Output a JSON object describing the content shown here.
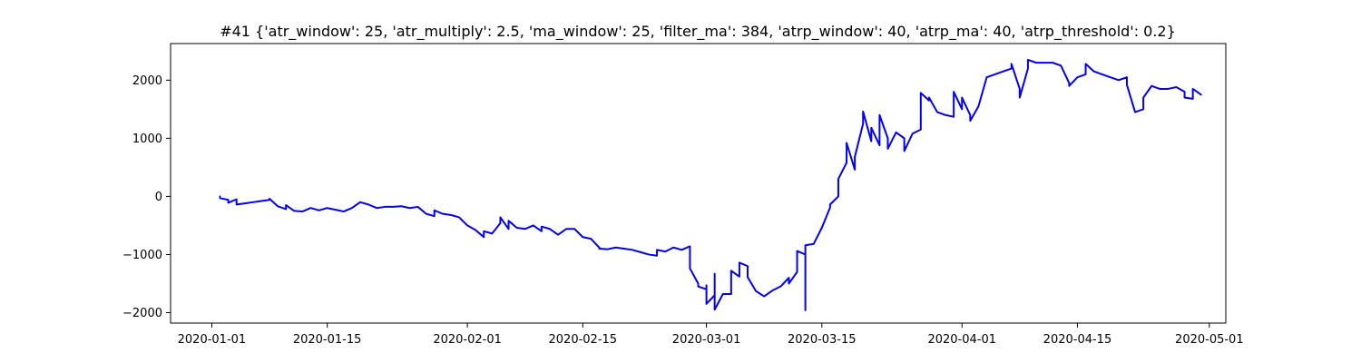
{
  "chart_data": {
    "type": "line",
    "title": "#41 {'atr_window': 25, 'atr_multiply': 2.5, 'ma_window': 25, 'filter_ma': 384, 'atrp_window': 40, 'atrp_ma': 40, 'atrp_threshold': 0.2}",
    "xlabel": "",
    "ylabel": "",
    "grid": false,
    "x_axis_kind": "date",
    "xlim": [
      "2019-12-27",
      "2020-05-03"
    ],
    "ylim": [
      -2180,
      2630
    ],
    "x_ticks": [
      "2020-01-01",
      "2020-01-15",
      "2020-02-01",
      "2020-02-15",
      "2020-03-01",
      "2020-03-15",
      "2020-04-01",
      "2020-04-15",
      "2020-05-01"
    ],
    "y_ticks": [
      -2000,
      -1000,
      0,
      1000,
      2000
    ],
    "series": [
      {
        "color": "#0000ff",
        "points": [
          [
            "2020-01-02",
            0
          ],
          [
            "2020-01-02",
            -30
          ],
          [
            "2020-01-03",
            -60
          ],
          [
            "2020-01-03",
            -110
          ],
          [
            "2020-01-04",
            -50
          ],
          [
            "2020-01-04",
            -140
          ],
          [
            "2020-01-05",
            -120
          ],
          [
            "2020-01-06",
            -100
          ],
          [
            "2020-01-07",
            -80
          ],
          [
            "2020-01-08",
            -60
          ],
          [
            "2020-01-08",
            -40
          ],
          [
            "2020-01-09",
            -170
          ],
          [
            "2020-01-10",
            -220
          ],
          [
            "2020-01-10",
            -150
          ],
          [
            "2020-01-11",
            -250
          ],
          [
            "2020-01-12",
            -260
          ],
          [
            "2020-01-13",
            -200
          ],
          [
            "2020-01-14",
            -240
          ],
          [
            "2020-01-15",
            -200
          ],
          [
            "2020-01-16",
            -230
          ],
          [
            "2020-01-17",
            -260
          ],
          [
            "2020-01-18",
            -200
          ],
          [
            "2020-01-19",
            -100
          ],
          [
            "2020-01-20",
            -140
          ],
          [
            "2020-01-21",
            -200
          ],
          [
            "2020-01-22",
            -180
          ],
          [
            "2020-01-23",
            -180
          ],
          [
            "2020-01-24",
            -170
          ],
          [
            "2020-01-25",
            -200
          ],
          [
            "2020-01-26",
            -180
          ],
          [
            "2020-01-27",
            -300
          ],
          [
            "2020-01-28",
            -340
          ],
          [
            "2020-01-28",
            -240
          ],
          [
            "2020-01-29",
            -300
          ],
          [
            "2020-01-30",
            -320
          ],
          [
            "2020-01-31",
            -360
          ],
          [
            "2020-02-01",
            -500
          ],
          [
            "2020-02-02",
            -580
          ],
          [
            "2020-02-03",
            -700
          ],
          [
            "2020-02-03",
            -600
          ],
          [
            "2020-02-04",
            -640
          ],
          [
            "2020-02-05",
            -460
          ],
          [
            "2020-02-05",
            -360
          ],
          [
            "2020-02-06",
            -560
          ],
          [
            "2020-02-06",
            -420
          ],
          [
            "2020-02-07",
            -540
          ],
          [
            "2020-02-08",
            -560
          ],
          [
            "2020-02-09",
            -500
          ],
          [
            "2020-02-10",
            -600
          ],
          [
            "2020-02-10",
            -520
          ],
          [
            "2020-02-11",
            -560
          ],
          [
            "2020-02-12",
            -660
          ],
          [
            "2020-02-13",
            -560
          ],
          [
            "2020-02-14",
            -560
          ],
          [
            "2020-02-15",
            -700
          ],
          [
            "2020-02-16",
            -730
          ],
          [
            "2020-02-17",
            -880
          ],
          [
            "2020-02-17",
            -900
          ],
          [
            "2020-02-18",
            -910
          ],
          [
            "2020-02-19",
            -880
          ],
          [
            "2020-02-20",
            -900
          ],
          [
            "2020-02-21",
            -920
          ],
          [
            "2020-02-22",
            -960
          ],
          [
            "2020-02-23",
            -1000
          ],
          [
            "2020-02-24",
            -1020
          ],
          [
            "2020-02-24",
            -920
          ],
          [
            "2020-02-25",
            -950
          ],
          [
            "2020-02-26",
            -880
          ],
          [
            "2020-02-27",
            -920
          ],
          [
            "2020-02-28",
            -860
          ],
          [
            "2020-02-28",
            -1130
          ],
          [
            "2020-02-28",
            -1240
          ],
          [
            "2020-02-29",
            -1500
          ],
          [
            "2020-02-29",
            -1550
          ],
          [
            "2020-03-01",
            -1600
          ],
          [
            "2020-03-01",
            -1740
          ],
          [
            "2020-03-01",
            -1530
          ],
          [
            "2020-03-01",
            -1850
          ],
          [
            "2020-03-02",
            -1700
          ],
          [
            "2020-03-02",
            -1740
          ],
          [
            "2020-03-02",
            -1330
          ],
          [
            "2020-03-02",
            -1580
          ],
          [
            "2020-03-02",
            -1680
          ],
          [
            "2020-03-02",
            -1650
          ],
          [
            "2020-03-02",
            -1780
          ],
          [
            "2020-03-02",
            -1650
          ],
          [
            "2020-03-02",
            -1950
          ],
          [
            "2020-03-03",
            -1680
          ],
          [
            "2020-03-04",
            -1680
          ],
          [
            "2020-03-04",
            -1280
          ],
          [
            "2020-03-05",
            -1380
          ],
          [
            "2020-03-05",
            -1170
          ],
          [
            "2020-03-05",
            -1140
          ],
          [
            "2020-03-06",
            -1200
          ],
          [
            "2020-03-06",
            -1250
          ],
          [
            "2020-03-06",
            -1390
          ],
          [
            "2020-03-07",
            -1630
          ],
          [
            "2020-03-08",
            -1720
          ],
          [
            "2020-03-09",
            -1620
          ],
          [
            "2020-03-10",
            -1550
          ],
          [
            "2020-03-11",
            -1400
          ],
          [
            "2020-03-11",
            -1500
          ],
          [
            "2020-03-12",
            -1300
          ],
          [
            "2020-03-12",
            -940
          ],
          [
            "2020-03-13",
            -1000
          ],
          [
            "2020-03-13",
            -1320
          ],
          [
            "2020-03-13",
            -1150
          ],
          [
            "2020-03-13",
            -1750
          ],
          [
            "2020-03-13",
            -1960
          ],
          [
            "2020-03-13",
            -1680
          ],
          [
            "2020-03-13",
            -1400
          ],
          [
            "2020-03-13",
            -840
          ],
          [
            "2020-03-14",
            -820
          ],
          [
            "2020-03-15",
            -540
          ],
          [
            "2020-03-16",
            -190
          ],
          [
            "2020-03-16",
            -140
          ],
          [
            "2020-03-17",
            0
          ],
          [
            "2020-03-17",
            300
          ],
          [
            "2020-03-18",
            580
          ],
          [
            "2020-03-18",
            920
          ],
          [
            "2020-03-19",
            460
          ],
          [
            "2020-03-19",
            680
          ],
          [
            "2020-03-20",
            1250
          ],
          [
            "2020-03-20",
            1460
          ],
          [
            "2020-03-21",
            950
          ],
          [
            "2020-03-21",
            1180
          ],
          [
            "2020-03-22",
            880
          ],
          [
            "2020-03-22",
            1050
          ],
          [
            "2020-03-22",
            1400
          ],
          [
            "2020-03-23",
            1000
          ],
          [
            "2020-03-23",
            820
          ],
          [
            "2020-03-24",
            1100
          ],
          [
            "2020-03-25",
            1000
          ],
          [
            "2020-03-25",
            780
          ],
          [
            "2020-03-26",
            1080
          ],
          [
            "2020-03-27",
            1150
          ],
          [
            "2020-03-27",
            1780
          ],
          [
            "2020-03-28",
            1650
          ],
          [
            "2020-03-28",
            1700
          ],
          [
            "2020-03-29",
            1450
          ],
          [
            "2020-03-30",
            1400
          ],
          [
            "2020-03-31",
            1370
          ],
          [
            "2020-03-31",
            1800
          ],
          [
            "2020-04-01",
            1500
          ],
          [
            "2020-04-01",
            1700
          ],
          [
            "2020-04-02",
            1400
          ],
          [
            "2020-04-02",
            1300
          ],
          [
            "2020-04-03",
            1550
          ],
          [
            "2020-04-04",
            2050
          ],
          [
            "2020-04-05",
            2100
          ],
          [
            "2020-04-06",
            2150
          ],
          [
            "2020-04-07",
            2200
          ],
          [
            "2020-04-07",
            2280
          ],
          [
            "2020-04-08",
            1850
          ],
          [
            "2020-04-08",
            1700
          ],
          [
            "2020-04-09",
            2200
          ],
          [
            "2020-04-09",
            2350
          ],
          [
            "2020-04-10",
            2300
          ],
          [
            "2020-04-11",
            2300
          ],
          [
            "2020-04-12",
            2300
          ],
          [
            "2020-04-13",
            2250
          ],
          [
            "2020-04-14",
            1950
          ],
          [
            "2020-04-14",
            1900
          ],
          [
            "2020-04-15",
            2050
          ],
          [
            "2020-04-16",
            2100
          ],
          [
            "2020-04-16",
            2280
          ],
          [
            "2020-04-17",
            2150
          ],
          [
            "2020-04-18",
            2100
          ],
          [
            "2020-04-19",
            2050
          ],
          [
            "2020-04-20",
            2000
          ],
          [
            "2020-04-21",
            2050
          ],
          [
            "2020-04-21",
            1920
          ],
          [
            "2020-04-22",
            1450
          ],
          [
            "2020-04-23",
            1500
          ],
          [
            "2020-04-23",
            1700
          ],
          [
            "2020-04-24",
            1900
          ],
          [
            "2020-04-25",
            1850
          ],
          [
            "2020-04-26",
            1850
          ],
          [
            "2020-04-27",
            1880
          ],
          [
            "2020-04-28",
            1800
          ],
          [
            "2020-04-28",
            1700
          ],
          [
            "2020-04-29",
            1680
          ],
          [
            "2020-04-29",
            1850
          ],
          [
            "2020-04-30",
            1750
          ]
        ]
      }
    ]
  }
}
